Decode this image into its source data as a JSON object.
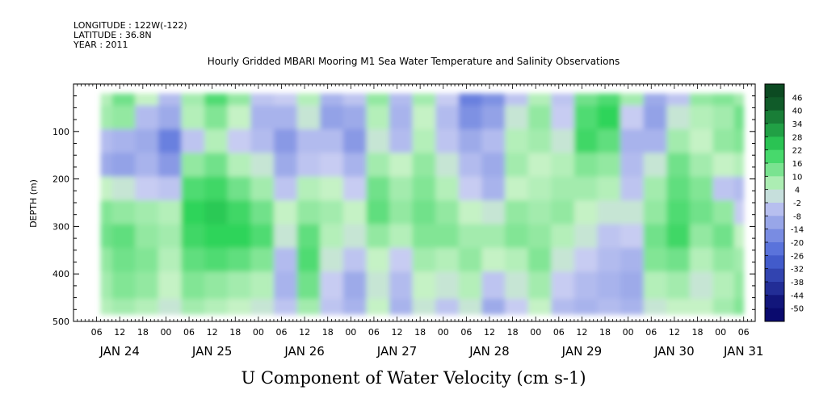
{
  "meta": {
    "longitude": "LONGITUDE : 122W(-122)",
    "latitude": "LATITUDE : 36.8N",
    "year": "YEAR : 2011"
  },
  "chart_data": {
    "type": "heatmap",
    "title": "Hourly Gridded MBARI Mooring M1 Sea Water Temperature and Salinity Observations",
    "xlabel": "U Component of Water Velocity (cm s-1)",
    "ylabel": "DEPTH (m)",
    "y_axis": {
      "range": [
        0,
        500
      ],
      "inverted": true,
      "ticks": [
        100,
        200,
        300,
        400,
        500
      ],
      "tick_labels": [
        "100",
        "200",
        "300",
        "400",
        "500"
      ]
    },
    "x_axis": {
      "unit": "hours",
      "range_hours": [
        0,
        177
      ],
      "hour_tick_labels": [
        "06",
        "12",
        "18",
        "00",
        "06",
        "12",
        "18",
        "00",
        "06",
        "12",
        "18",
        "00",
        "06",
        "12",
        "18",
        "00",
        "06",
        "12",
        "18",
        "00",
        "06",
        "12",
        "18",
        "00",
        "06",
        "12",
        "18",
        "00",
        "06",
        "12",
        "18",
        "00"
      ],
      "day_labels": [
        {
          "label": "JAN 24",
          "at_hour": 12
        },
        {
          "label": "JAN 25",
          "at_hour": 36
        },
        {
          "label": "JAN 26",
          "at_hour": 60
        },
        {
          "label": "JAN 27",
          "at_hour": 84
        },
        {
          "label": "JAN 28",
          "at_hour": 108
        },
        {
          "label": "JAN 29",
          "at_hour": 132
        },
        {
          "label": "JAN 30",
          "at_hour": 156
        },
        {
          "label": "JAN 31",
          "at_hour": 174
        }
      ]
    },
    "data_extent": {
      "hours": [
        7,
        174
      ],
      "depth_m": [
        20,
        485
      ]
    },
    "colorbar": {
      "levels": [
        -50,
        -44,
        -38,
        -32,
        -26,
        -20,
        -14,
        -8,
        -2,
        4,
        10,
        16,
        22,
        28,
        34,
        40,
        46
      ],
      "labels": [
        "46",
        "40",
        "34",
        "28",
        "22",
        "16",
        "10",
        "4",
        "-2",
        "-8",
        "-14",
        "-20",
        "-26",
        "-32",
        "-38",
        "-44",
        "-50"
      ],
      "negative_color_end": "#0a0a6e",
      "negative_color_mid": "#4a66d8",
      "negative_color_light": "#c7ccf2",
      "positive_color_light": "#c5f2c5",
      "positive_color_mid": "#2ed45a",
      "positive_color_end": "#0c4a22"
    },
    "field": {
      "depth_levels_m": [
        20,
        70,
        120,
        170,
        220,
        270,
        320,
        370,
        420,
        485
      ],
      "columns": [
        {
          "h": 7,
          "u": [
            6,
            8,
            -6,
            -10,
            4,
            12,
            14,
            10,
            8,
            6
          ]
        },
        {
          "h": 13,
          "u": [
            14,
            10,
            -8,
            -12,
            2,
            10,
            16,
            14,
            12,
            8
          ]
        },
        {
          "h": 19,
          "u": [
            4,
            -6,
            -10,
            -8,
            -2,
            8,
            10,
            12,
            10,
            6
          ]
        },
        {
          "h": 25,
          "u": [
            -6,
            -10,
            -20,
            -14,
            -4,
            6,
            8,
            6,
            4,
            2
          ]
        },
        {
          "h": 31,
          "u": [
            8,
            6,
            -4,
            10,
            18,
            22,
            20,
            16,
            12,
            8
          ]
        },
        {
          "h": 37,
          "u": [
            18,
            12,
            6,
            14,
            20,
            24,
            22,
            18,
            10,
            6
          ]
        },
        {
          "h": 43,
          "u": [
            10,
            4,
            -2,
            6,
            14,
            20,
            22,
            16,
            8,
            4
          ]
        },
        {
          "h": 49,
          "u": [
            -4,
            -8,
            -6,
            2,
            8,
            14,
            18,
            12,
            6,
            2
          ]
        },
        {
          "h": 55,
          "u": [
            -2,
            -8,
            -14,
            -10,
            -4,
            4,
            2,
            -6,
            -8,
            -4
          ]
        },
        {
          "h": 61,
          "u": [
            6,
            2,
            -6,
            -4,
            6,
            10,
            16,
            18,
            14,
            8
          ]
        },
        {
          "h": 67,
          "u": [
            -8,
            -12,
            -6,
            -2,
            4,
            8,
            6,
            2,
            -2,
            -4
          ]
        },
        {
          "h": 73,
          "u": [
            -4,
            -10,
            -14,
            -8,
            -2,
            4,
            2,
            -4,
            -10,
            -8
          ]
        },
        {
          "h": 79,
          "u": [
            10,
            6,
            2,
            8,
            14,
            16,
            10,
            4,
            2,
            4
          ]
        },
        {
          "h": 85,
          "u": [
            -6,
            -8,
            -6,
            4,
            8,
            10,
            6,
            -2,
            -6,
            -8
          ]
        },
        {
          "h": 91,
          "u": [
            8,
            4,
            6,
            10,
            12,
            14,
            12,
            8,
            4,
            2
          ]
        },
        {
          "h": 97,
          "u": [
            -2,
            -6,
            -4,
            2,
            6,
            10,
            12,
            6,
            2,
            -4
          ]
        },
        {
          "h": 103,
          "u": [
            -20,
            -16,
            -10,
            -6,
            -2,
            4,
            8,
            10,
            6,
            2
          ]
        },
        {
          "h": 109,
          "u": [
            -16,
            -12,
            -6,
            -10,
            -8,
            2,
            8,
            4,
            -4,
            -10
          ]
        },
        {
          "h": 115,
          "u": [
            -4,
            2,
            6,
            8,
            4,
            10,
            12,
            6,
            2,
            -2
          ]
        },
        {
          "h": 121,
          "u": [
            6,
            10,
            8,
            4,
            6,
            8,
            10,
            12,
            8,
            4
          ]
        },
        {
          "h": 127,
          "u": [
            -4,
            -2,
            2,
            6,
            8,
            10,
            6,
            2,
            -2,
            -6
          ]
        },
        {
          "h": 133,
          "u": [
            14,
            18,
            20,
            12,
            8,
            4,
            2,
            -2,
            -6,
            -8
          ]
        },
        {
          "h": 139,
          "u": [
            18,
            22,
            16,
            10,
            6,
            2,
            -4,
            -6,
            -8,
            -6
          ]
        },
        {
          "h": 145,
          "u": [
            8,
            -2,
            -8,
            -6,
            -4,
            2,
            -2,
            -8,
            -10,
            -8
          ]
        },
        {
          "h": 151,
          "u": [
            -10,
            -12,
            -8,
            2,
            8,
            10,
            14,
            12,
            6,
            2
          ]
        },
        {
          "h": 157,
          "u": [
            -4,
            2,
            8,
            14,
            16,
            18,
            20,
            14,
            8,
            4
          ]
        },
        {
          "h": 163,
          "u": [
            10,
            6,
            4,
            8,
            12,
            14,
            10,
            6,
            2,
            4
          ]
        },
        {
          "h": 169,
          "u": [
            12,
            8,
            10,
            4,
            -4,
            10,
            14,
            10,
            6,
            8
          ]
        },
        {
          "h": 174,
          "u": [
            8,
            14,
            12,
            6,
            -6,
            -2,
            4,
            8,
            10,
            12
          ]
        }
      ]
    }
  }
}
